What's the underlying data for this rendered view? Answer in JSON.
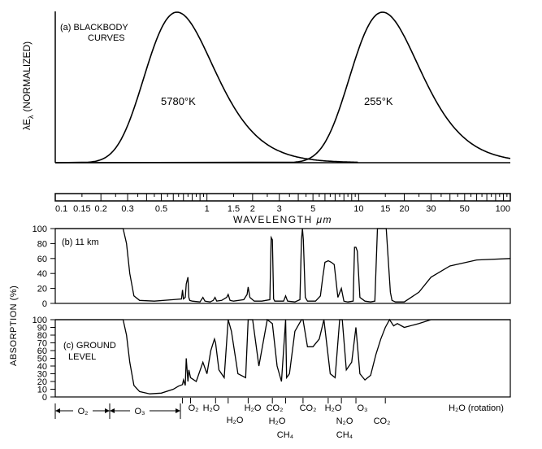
{
  "chart_data": [
    {
      "type": "line",
      "panel_label": "(a) BLACKBODY",
      "panel_label_2": "CURVES",
      "ylabel": "λE",
      "ylabel_sub": "λ",
      "ylabel_rest": "(NORMALIZED)",
      "xscale": "log",
      "xlim": [
        0.1,
        100
      ],
      "ylim": [
        0,
        1
      ],
      "series": [
        {
          "name": "5780°K",
          "temperature": 5780
        },
        {
          "name": "255°K",
          "temperature": 255
        }
      ]
    },
    {
      "type": "axis",
      "xlabel": "WAVELENGTH",
      "xlabel_unit": "μm",
      "xscale": "log",
      "xlim": [
        0.1,
        100
      ],
      "ticks": [
        {
          "value": 0.1,
          "label": "0.1"
        },
        {
          "value": 0.15,
          "label": "0.15"
        },
        {
          "value": 0.2,
          "label": "0.2"
        },
        {
          "value": 0.3,
          "label": "0.3"
        },
        {
          "value": 0.5,
          "label": "0.5"
        },
        {
          "value": 1,
          "label": "1"
        },
        {
          "value": 1.5,
          "label": "1.5"
        },
        {
          "value": 2,
          "label": "2"
        },
        {
          "value": 3,
          "label": "3"
        },
        {
          "value": 5,
          "label": "5"
        },
        {
          "value": 10,
          "label": "10"
        },
        {
          "value": 15,
          "label": "15"
        },
        {
          "value": 20,
          "label": "20"
        },
        {
          "value": 30,
          "label": "30"
        },
        {
          "value": 50,
          "label": "50"
        },
        {
          "value": 100,
          "label": "100"
        }
      ]
    },
    {
      "type": "line",
      "panel_label": "(b) 11 km",
      "xscale": "log",
      "xlim": [
        0.1,
        100
      ],
      "ylim": [
        0,
        100
      ],
      "yticks": [
        0,
        20,
        40,
        60,
        80,
        100
      ],
      "series": [
        {
          "x": [
            0.1,
            0.28,
            0.295,
            0.31,
            0.33,
            0.36,
            0.45,
            0.6,
            0.68,
            0.69,
            0.7,
            0.72,
            0.73,
            0.75,
            0.76,
            0.77,
            0.8,
            0.9,
            0.94,
            0.97,
            1.05,
            1.1,
            1.13,
            1.16,
            1.25,
            1.35,
            1.38,
            1.42,
            1.5,
            1.75,
            1.84,
            1.87,
            1.92,
            2.05,
            2.3,
            2.6,
            2.65,
            2.7,
            2.75,
            2.8,
            3.0,
            3.2,
            3.3,
            3.4,
            3.8,
            4.1,
            4.2,
            4.26,
            4.32,
            4.45,
            4.6,
            5.2,
            5.6,
            5.8,
            6.0,
            6.3,
            6.6,
            6.9,
            7.3,
            7.7,
            8.0,
            8.5,
            9.2,
            9.4,
            9.6,
            9.8,
            10.2,
            11,
            12,
            12.8,
            13.3,
            13.6,
            14,
            15.2,
            16.2,
            16.6,
            17.5,
            20,
            25,
            30,
            40,
            60,
            100
          ],
          "y": [
            100,
            100,
            80,
            40,
            10,
            4,
            3,
            5,
            6,
            18,
            6,
            8,
            26,
            35,
            8,
            4,
            3,
            2,
            8,
            3,
            2,
            4,
            8,
            3,
            4,
            8,
            12,
            4,
            3,
            5,
            12,
            22,
            8,
            3,
            3,
            5,
            88,
            85,
            6,
            3,
            3,
            3,
            10,
            3,
            2,
            5,
            85,
            100,
            85,
            8,
            3,
            3,
            10,
            35,
            55,
            57,
            55,
            52,
            8,
            20,
            3,
            2,
            3,
            75,
            75,
            70,
            8,
            3,
            2,
            3,
            100,
            100,
            100,
            100,
            15,
            4,
            2,
            2,
            15,
            35,
            50,
            58,
            60
          ]
        }
      ]
    },
    {
      "type": "line",
      "panel_label": "(c) GROUND",
      "panel_label_2": "LEVEL",
      "ylabel": "ABSORPTION  (%)",
      "xscale": "log",
      "xlim": [
        0.1,
        100
      ],
      "ylim": [
        0,
        100
      ],
      "yticks": [
        0,
        10,
        20,
        30,
        40,
        50,
        60,
        70,
        80,
        90,
        100
      ],
      "series": [
        {
          "x": [
            0.1,
            0.28,
            0.295,
            0.31,
            0.33,
            0.36,
            0.42,
            0.5,
            0.6,
            0.65,
            0.69,
            0.7,
            0.72,
            0.73,
            0.75,
            0.76,
            0.78,
            0.85,
            0.94,
            1.0,
            1.06,
            1.12,
            1.14,
            1.2,
            1.3,
            1.38,
            1.45,
            1.6,
            1.8,
            1.87,
            2.0,
            2.2,
            2.5,
            2.7,
            2.9,
            3.1,
            3.3,
            3.35,
            3.5,
            3.8,
            4.2,
            4.3,
            4.6,
            5.0,
            5.5,
            5.9,
            6.5,
            7.0,
            7.5,
            7.8,
            8.3,
            9.0,
            9.6,
            10.2,
            11,
            12,
            13,
            14,
            15,
            16,
            17,
            18,
            20,
            25,
            30,
            40,
            60,
            100
          ],
          "y": [
            100,
            100,
            80,
            45,
            15,
            7,
            4,
            5,
            10,
            14,
            16,
            22,
            15,
            50,
            20,
            35,
            25,
            20,
            45,
            30,
            60,
            75,
            70,
            35,
            25,
            100,
            85,
            30,
            25,
            100,
            100,
            40,
            100,
            95,
            40,
            20,
            100,
            25,
            30,
            85,
            100,
            100,
            65,
            65,
            75,
            100,
            30,
            25,
            100,
            100,
            35,
            45,
            90,
            30,
            22,
            28,
            55,
            75,
            90,
            100,
            92,
            95,
            90,
            95,
            100,
            100,
            100,
            100
          ]
        }
      ]
    }
  ],
  "bands": [
    {
      "label": "O₂"
    },
    {
      "label": "O₃"
    }
  ],
  "absorbers": [
    {
      "x": 0.69,
      "label": "O₂"
    },
    {
      "x": 0.85,
      "label": "H₂O"
    },
    {
      "x": 1.35,
      "label": "H₂O"
    },
    {
      "x": 2.0,
      "label": "H₂O"
    },
    {
      "x": 2.7,
      "label": "CO₂"
    },
    {
      "x": 3.3,
      "label": "H₂O"
    },
    {
      "x": 3.3,
      "label": "CH₄"
    },
    {
      "x": 4.3,
      "label": "CO₂"
    },
    {
      "x": 6.3,
      "label": "H₂O"
    },
    {
      "x": 7.7,
      "label": "N₂O"
    },
    {
      "x": 7.7,
      "label": "CH₄"
    },
    {
      "x": 9.6,
      "label": "O₃"
    },
    {
      "x": 15,
      "label": "CO₂"
    },
    {
      "x": 50,
      "label": "H₂O (rotation)"
    }
  ]
}
